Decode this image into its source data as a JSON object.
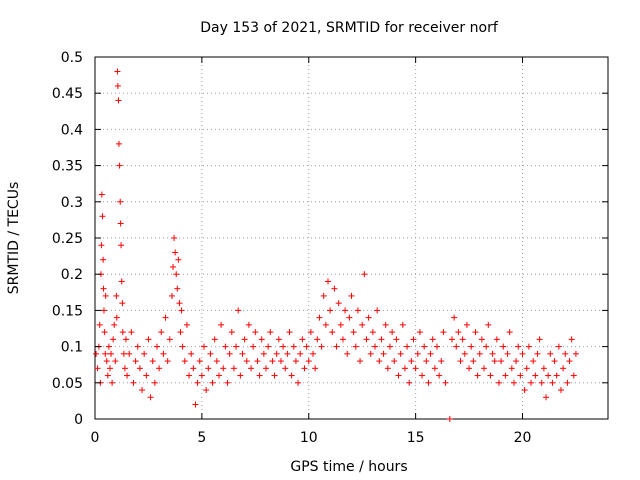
{
  "chart_data": {
    "type": "scatter",
    "title": "Day 153 of 2021, SRMTID for receiver norf",
    "xlabel": "GPS time / hours",
    "ylabel": "SRMTID / TECUs",
    "xlim": [
      0,
      24
    ],
    "ylim": [
      0,
      0.5
    ],
    "xticks": [
      "0",
      "5",
      "10",
      "15",
      "20"
    ],
    "yticks": [
      "0",
      "0.05",
      "0.1",
      "0.15",
      "0.2",
      "0.25",
      "0.3",
      "0.35",
      "0.4",
      "0.45",
      "0.5"
    ],
    "grid": true,
    "marker": "plus",
    "color": "#ff0000",
    "series": [
      {
        "points": [
          [
            0.05,
            0.09
          ],
          [
            0.12,
            0.07
          ],
          [
            0.18,
            0.1
          ],
          [
            0.22,
            0.13
          ],
          [
            0.25,
            0.05
          ],
          [
            0.28,
            0.2
          ],
          [
            0.3,
            0.24
          ],
          [
            0.32,
            0.31
          ],
          [
            0.35,
            0.28
          ],
          [
            0.38,
            0.22
          ],
          [
            0.4,
            0.18
          ],
          [
            0.42,
            0.15
          ],
          [
            0.45,
            0.12
          ],
          [
            0.48,
            0.09
          ],
          [
            0.5,
            0.17
          ],
          [
            0.55,
            0.08
          ],
          [
            0.6,
            0.06
          ],
          [
            0.65,
            0.1
          ],
          [
            0.7,
            0.07
          ],
          [
            0.75,
            0.09
          ],
          [
            0.8,
            0.05
          ],
          [
            0.85,
            0.11
          ],
          [
            0.9,
            0.13
          ],
          [
            0.95,
            0.08
          ],
          [
            1.0,
            0.17
          ],
          [
            1.02,
            0.14
          ],
          [
            1.05,
            0.48
          ],
          [
            1.07,
            0.46
          ],
          [
            1.1,
            0.44
          ],
          [
            1.12,
            0.38
          ],
          [
            1.15,
            0.35
          ],
          [
            1.18,
            0.3
          ],
          [
            1.2,
            0.27
          ],
          [
            1.22,
            0.24
          ],
          [
            1.25,
            0.19
          ],
          [
            1.28,
            0.16
          ],
          [
            1.3,
            0.12
          ],
          [
            1.35,
            0.09
          ],
          [
            1.4,
            0.07
          ],
          [
            1.45,
            0.11
          ],
          [
            1.5,
            0.06
          ],
          [
            1.6,
            0.09
          ],
          [
            1.7,
            0.12
          ],
          [
            1.8,
            0.05
          ],
          [
            1.9,
            0.08
          ],
          [
            2.0,
            0.1
          ],
          [
            2.1,
            0.07
          ],
          [
            2.2,
            0.04
          ],
          [
            2.3,
            0.09
          ],
          [
            2.4,
            0.06
          ],
          [
            2.5,
            0.11
          ],
          [
            2.6,
            0.03
          ],
          [
            2.7,
            0.08
          ],
          [
            2.8,
            0.05
          ],
          [
            2.9,
            0.1
          ],
          [
            3.0,
            0.07
          ],
          [
            3.1,
            0.12
          ],
          [
            3.2,
            0.09
          ],
          [
            3.3,
            0.14
          ],
          [
            3.4,
            0.08
          ],
          [
            3.5,
            0.11
          ],
          [
            3.6,
            0.17
          ],
          [
            3.65,
            0.21
          ],
          [
            3.7,
            0.25
          ],
          [
            3.75,
            0.23
          ],
          [
            3.8,
            0.2
          ],
          [
            3.85,
            0.18
          ],
          [
            3.9,
            0.22
          ],
          [
            3.95,
            0.16
          ],
          [
            4.0,
            0.12
          ],
          [
            4.05,
            0.15
          ],
          [
            4.1,
            0.1
          ],
          [
            4.2,
            0.08
          ],
          [
            4.3,
            0.13
          ],
          [
            4.4,
            0.06
          ],
          [
            4.5,
            0.09
          ],
          [
            4.6,
            0.07
          ],
          [
            4.7,
            0.02
          ],
          [
            4.8,
            0.05
          ],
          [
            4.9,
            0.08
          ],
          [
            5.0,
            0.06
          ],
          [
            5.1,
            0.1
          ],
          [
            5.2,
            0.04
          ],
          [
            5.3,
            0.07
          ],
          [
            5.4,
            0.09
          ],
          [
            5.5,
            0.05
          ],
          [
            5.6,
            0.11
          ],
          [
            5.7,
            0.08
          ],
          [
            5.8,
            0.06
          ],
          [
            5.9,
            0.13
          ],
          [
            6.0,
            0.07
          ],
          [
            6.1,
            0.1
          ],
          [
            6.2,
            0.05
          ],
          [
            6.3,
            0.09
          ],
          [
            6.4,
            0.12
          ],
          [
            6.5,
            0.07
          ],
          [
            6.6,
            0.1
          ],
          [
            6.7,
            0.15
          ],
          [
            6.8,
            0.06
          ],
          [
            6.9,
            0.09
          ],
          [
            7.0,
            0.11
          ],
          [
            7.1,
            0.08
          ],
          [
            7.2,
            0.13
          ],
          [
            7.3,
            0.07
          ],
          [
            7.4,
            0.1
          ],
          [
            7.5,
            0.12
          ],
          [
            7.6,
            0.08
          ],
          [
            7.7,
            0.06
          ],
          [
            7.8,
            0.11
          ],
          [
            7.9,
            0.09
          ],
          [
            8.0,
            0.07
          ],
          [
            8.1,
            0.1
          ],
          [
            8.2,
            0.12
          ],
          [
            8.3,
            0.08
          ],
          [
            8.4,
            0.06
          ],
          [
            8.5,
            0.09
          ],
          [
            8.6,
            0.11
          ],
          [
            8.7,
            0.08
          ],
          [
            8.8,
            0.1
          ],
          [
            8.9,
            0.07
          ],
          [
            9.0,
            0.09
          ],
          [
            9.1,
            0.12
          ],
          [
            9.2,
            0.06
          ],
          [
            9.3,
            0.1
          ],
          [
            9.4,
            0.08
          ],
          [
            9.5,
            0.05
          ],
          [
            9.6,
            0.09
          ],
          [
            9.7,
            0.11
          ],
          [
            9.8,
            0.07
          ],
          [
            9.9,
            0.1
          ],
          [
            10.0,
            0.08
          ],
          [
            10.1,
            0.12
          ],
          [
            10.2,
            0.09
          ],
          [
            10.3,
            0.07
          ],
          [
            10.4,
            0.11
          ],
          [
            10.5,
            0.14
          ],
          [
            10.6,
            0.1
          ],
          [
            10.7,
            0.17
          ],
          [
            10.8,
            0.13
          ],
          [
            10.9,
            0.19
          ],
          [
            11.0,
            0.15
          ],
          [
            11.1,
            0.12
          ],
          [
            11.2,
            0.18
          ],
          [
            11.3,
            0.1
          ],
          [
            11.4,
            0.16
          ],
          [
            11.5,
            0.13
          ],
          [
            11.6,
            0.11
          ],
          [
            11.7,
            0.15
          ],
          [
            11.8,
            0.09
          ],
          [
            11.9,
            0.14
          ],
          [
            12.0,
            0.17
          ],
          [
            12.1,
            0.12
          ],
          [
            12.2,
            0.1
          ],
          [
            12.3,
            0.15
          ],
          [
            12.4,
            0.08
          ],
          [
            12.5,
            0.13
          ],
          [
            12.6,
            0.2
          ],
          [
            12.7,
            0.11
          ],
          [
            12.8,
            0.14
          ],
          [
            12.9,
            0.09
          ],
          [
            13.0,
            0.12
          ],
          [
            13.1,
            0.1
          ],
          [
            13.2,
            0.15
          ],
          [
            13.3,
            0.08
          ],
          [
            13.4,
            0.11
          ],
          [
            13.5,
            0.09
          ],
          [
            13.6,
            0.13
          ],
          [
            13.7,
            0.07
          ],
          [
            13.8,
            0.1
          ],
          [
            13.9,
            0.12
          ],
          [
            14.0,
            0.08
          ],
          [
            14.1,
            0.11
          ],
          [
            14.2,
            0.06
          ],
          [
            14.3,
            0.09
          ],
          [
            14.4,
            0.13
          ],
          [
            14.5,
            0.07
          ],
          [
            14.6,
            0.1
          ],
          [
            14.7,
            0.05
          ],
          [
            14.8,
            0.08
          ],
          [
            14.9,
            0.11
          ],
          [
            15.0,
            0.07
          ],
          [
            15.1,
            0.09
          ],
          [
            15.2,
            0.12
          ],
          [
            15.3,
            0.06
          ],
          [
            15.4,
            0.1
          ],
          [
            15.5,
            0.08
          ],
          [
            15.6,
            0.05
          ],
          [
            15.7,
            0.09
          ],
          [
            15.8,
            0.11
          ],
          [
            15.9,
            0.07
          ],
          [
            16.0,
            0.1
          ],
          [
            16.1,
            0.06
          ],
          [
            16.2,
            0.08
          ],
          [
            16.3,
            0.12
          ],
          [
            16.4,
            0.05
          ],
          [
            16.6,
            0.0
          ],
          [
            16.7,
            0.11
          ],
          [
            16.8,
            0.14
          ],
          [
            16.9,
            0.1
          ],
          [
            17.0,
            0.12
          ],
          [
            17.1,
            0.08
          ],
          [
            17.2,
            0.11
          ],
          [
            17.3,
            0.09
          ],
          [
            17.4,
            0.13
          ],
          [
            17.5,
            0.07
          ],
          [
            17.6,
            0.1
          ],
          [
            17.7,
            0.08
          ],
          [
            17.8,
            0.12
          ],
          [
            17.9,
            0.06
          ],
          [
            18.0,
            0.09
          ],
          [
            18.1,
            0.11
          ],
          [
            18.2,
            0.07
          ],
          [
            18.3,
            0.1
          ],
          [
            18.4,
            0.13
          ],
          [
            18.5,
            0.06
          ],
          [
            18.6,
            0.09
          ],
          [
            18.7,
            0.08
          ],
          [
            18.8,
            0.11
          ],
          [
            18.9,
            0.05
          ],
          [
            19.0,
            0.08
          ],
          [
            19.1,
            0.1
          ],
          [
            19.2,
            0.06
          ],
          [
            19.3,
            0.09
          ],
          [
            19.4,
            0.12
          ],
          [
            19.5,
            0.07
          ],
          [
            19.6,
            0.05
          ],
          [
            19.7,
            0.08
          ],
          [
            19.8,
            0.1
          ],
          [
            19.9,
            0.06
          ],
          [
            20.0,
            0.09
          ],
          [
            20.1,
            0.04
          ],
          [
            20.2,
            0.07
          ],
          [
            20.3,
            0.1
          ],
          [
            20.4,
            0.05
          ],
          [
            20.5,
            0.08
          ],
          [
            20.6,
            0.06
          ],
          [
            20.7,
            0.09
          ],
          [
            20.8,
            0.11
          ],
          [
            20.9,
            0.05
          ],
          [
            21.0,
            0.07
          ],
          [
            21.1,
            0.03
          ],
          [
            21.2,
            0.06
          ],
          [
            21.3,
            0.09
          ],
          [
            21.4,
            0.05
          ],
          [
            21.5,
            0.08
          ],
          [
            21.6,
            0.06
          ],
          [
            21.7,
            0.1
          ],
          [
            21.8,
            0.04
          ],
          [
            21.9,
            0.07
          ],
          [
            22.0,
            0.09
          ],
          [
            22.1,
            0.05
          ],
          [
            22.2,
            0.08
          ],
          [
            22.3,
            0.11
          ],
          [
            22.4,
            0.06
          ],
          [
            22.5,
            0.09
          ]
        ]
      }
    ]
  }
}
